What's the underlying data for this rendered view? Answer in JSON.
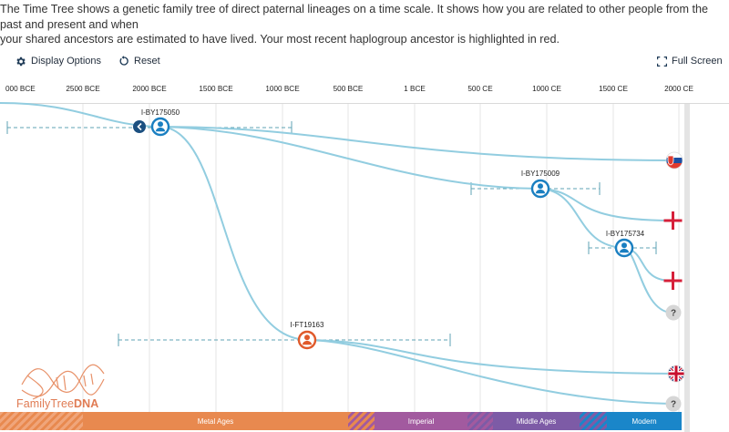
{
  "intro": {
    "line1": "The Time Tree shows a genetic family tree of direct paternal lineages on a time scale. It shows how you are related to other people from the past and present and when",
    "line2": "your shared ancestors are estimated to have lived. Your most recent haplogroup ancestor is highlighted in red."
  },
  "toolbar": {
    "display_options": "Display Options",
    "reset": "Reset",
    "full_screen": "Full Screen"
  },
  "axis": {
    "ticks": [
      "000 BCE",
      "2500 BCE",
      "2000 BCE",
      "1500 BCE",
      "1000 BCE",
      "500 BCE",
      "1 BCE",
      "500 CE",
      "1000 CE",
      "1500 CE",
      "2000 CE"
    ]
  },
  "nodes": {
    "n1": "I-BY175050",
    "n2": "I-BY175009",
    "n3": "I-BY175734",
    "n4": "I-FT19163"
  },
  "leaves": {
    "unknown_a": "?",
    "unknown_b": "?"
  },
  "eras": {
    "metal": "Metal Ages",
    "imperial": "Imperial",
    "middle": "Middle Ages",
    "modern": "Modern"
  },
  "brand": {
    "name_left": "FamilyTree",
    "name_right": "DNA"
  },
  "colors": {
    "line": "#92cde0",
    "node_blue": "#1a7fc1",
    "node_red": "#e05a2b",
    "metal": "#e8894f",
    "imperial": "#a25a9f",
    "middle": "#7d5ba6",
    "modern": "#1a86c9",
    "brand": "#e07b53"
  }
}
